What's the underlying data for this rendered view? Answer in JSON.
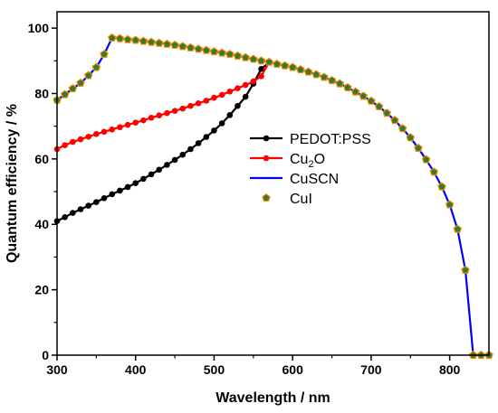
{
  "chart_data": {
    "type": "line",
    "title": "",
    "xlabel": "Wavelength / nm",
    "ylabel": "Quantum efficiency / %",
    "xlim": [
      300,
      850
    ],
    "ylim": [
      0,
      105
    ],
    "x_ticks": [
      "300",
      "400",
      "500",
      "600",
      "700",
      "800"
    ],
    "y_ticks": [
      "0",
      "20",
      "40",
      "60",
      "80",
      "100"
    ],
    "legend_position": "center-right",
    "series": [
      {
        "name": "PEDOT:PSS",
        "label_main": "PEDOT:PSS",
        "label_sub": "",
        "label_tail": "",
        "color": "#000000",
        "line": true,
        "marker": "circle",
        "marker_color": "#000000",
        "x": [
          300,
          310,
          320,
          330,
          340,
          350,
          360,
          370,
          380,
          390,
          400,
          410,
          420,
          430,
          440,
          450,
          460,
          470,
          480,
          490,
          500,
          510,
          520,
          530,
          540,
          550,
          560,
          570
        ],
        "y": [
          41.0,
          42.2,
          43.5,
          44.6,
          45.7,
          46.8,
          48.0,
          49.2,
          50.3,
          51.4,
          52.6,
          53.9,
          55.3,
          56.7,
          58.2,
          59.7,
          61.3,
          63.0,
          64.8,
          66.7,
          68.7,
          70.9,
          73.4,
          76.2,
          79.0,
          83.0,
          87.5,
          89.5
        ]
      },
      {
        "name": "Cu2O",
        "label_main": "Cu",
        "label_sub": "2",
        "label_tail": "O",
        "color": "#ff0000",
        "line": true,
        "marker": "circle",
        "marker_color": "#ff0000",
        "x": [
          300,
          310,
          320,
          330,
          340,
          350,
          360,
          370,
          380,
          390,
          400,
          410,
          420,
          430,
          440,
          450,
          460,
          470,
          480,
          490,
          500,
          510,
          520,
          530,
          540,
          550,
          560,
          570
        ],
        "y": [
          63.0,
          64.2,
          65.2,
          66.0,
          66.8,
          67.6,
          68.3,
          69.0,
          69.7,
          70.4,
          71.1,
          71.8,
          72.6,
          73.3,
          74.0,
          74.7,
          75.4,
          76.2,
          77.0,
          77.8,
          78.7,
          79.6,
          80.6,
          81.6,
          82.6,
          83.7,
          85.3,
          89.5
        ]
      },
      {
        "name": "CuSCN",
        "label_main": "CuSCN",
        "label_sub": "",
        "label_tail": "",
        "color": "#0000ff",
        "line": true,
        "marker": "none",
        "marker_color": "#0000ff",
        "x": [
          300,
          310,
          320,
          330,
          340,
          350,
          360,
          370,
          380,
          390,
          400,
          410,
          420,
          430,
          440,
          450,
          460,
          470,
          480,
          490,
          500,
          510,
          520,
          530,
          540,
          550,
          560,
          570,
          580,
          590,
          600,
          610,
          620,
          630,
          640,
          650,
          660,
          670,
          680,
          690,
          700,
          710,
          720,
          730,
          740,
          750,
          760,
          770,
          780,
          790,
          800,
          810,
          820,
          830,
          840,
          850
        ],
        "y": [
          78.0,
          79.7,
          81.5,
          83.2,
          85.5,
          88.0,
          92.0,
          97.0,
          96.8,
          96.5,
          96.3,
          96.0,
          95.7,
          95.4,
          95.1,
          94.8,
          94.4,
          94.0,
          93.6,
          93.2,
          92.8,
          92.4,
          92.0,
          91.5,
          91.0,
          90.5,
          90.0,
          89.6,
          89.0,
          88.5,
          88.0,
          87.3,
          86.6,
          85.8,
          85.0,
          84.0,
          83.0,
          81.8,
          80.5,
          79.2,
          77.7,
          76.0,
          74.0,
          71.8,
          69.3,
          66.5,
          63.3,
          59.8,
          56.0,
          51.5,
          46.0,
          38.5,
          26.0,
          0,
          0,
          0
        ]
      },
      {
        "name": "CuI",
        "label_main": "CuI",
        "label_sub": "",
        "label_tail": "",
        "color": "#2e7d32",
        "line": false,
        "marker": "pentagon",
        "marker_color": "#ff8c00",
        "x": [
          300,
          310,
          320,
          330,
          340,
          350,
          360,
          370,
          380,
          390,
          400,
          410,
          420,
          430,
          440,
          450,
          460,
          470,
          480,
          490,
          500,
          510,
          520,
          530,
          540,
          550,
          560,
          570,
          580,
          590,
          600,
          610,
          620,
          630,
          640,
          650,
          660,
          670,
          680,
          690,
          700,
          710,
          720,
          730,
          740,
          750,
          760,
          770,
          780,
          790,
          800,
          810,
          820,
          830,
          840,
          850
        ],
        "y": [
          78.0,
          79.7,
          81.5,
          83.2,
          85.5,
          88.0,
          92.0,
          97.0,
          96.8,
          96.5,
          96.3,
          96.0,
          95.7,
          95.4,
          95.1,
          94.8,
          94.4,
          94.0,
          93.6,
          93.2,
          92.8,
          92.4,
          92.0,
          91.5,
          91.0,
          90.5,
          90.0,
          89.6,
          89.0,
          88.5,
          88.0,
          87.3,
          86.6,
          85.8,
          85.0,
          84.0,
          83.0,
          81.8,
          80.5,
          79.2,
          77.7,
          76.0,
          74.0,
          71.8,
          69.3,
          66.5,
          63.3,
          59.8,
          56.0,
          51.5,
          46.0,
          38.5,
          26.0,
          0,
          0,
          0
        ]
      }
    ]
  }
}
